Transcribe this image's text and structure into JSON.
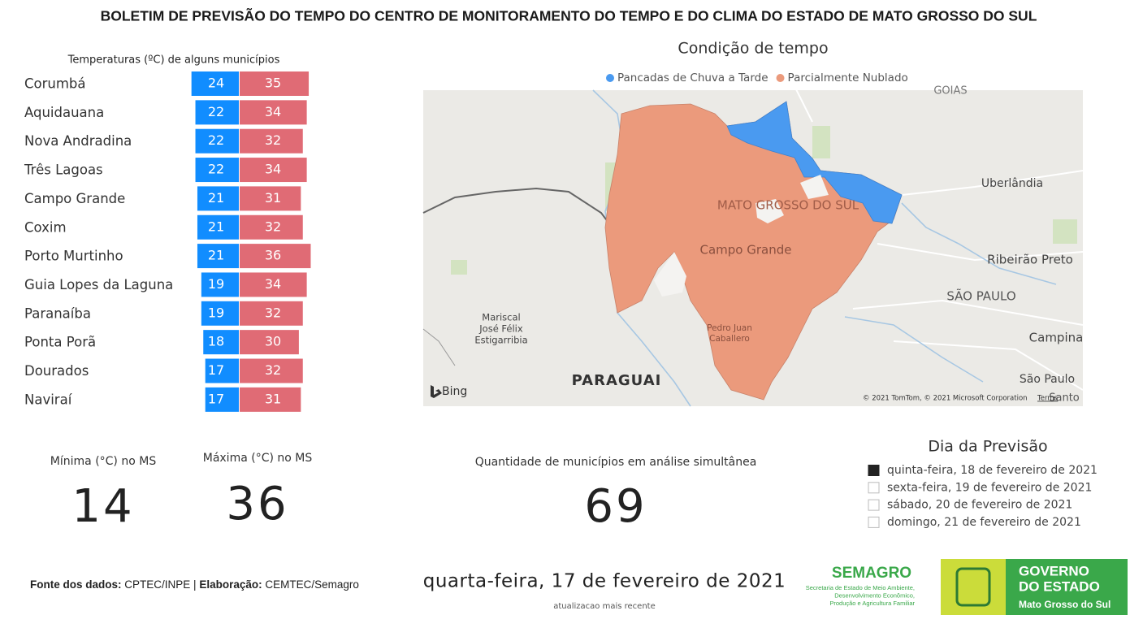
{
  "header": {
    "title": "BOLETIM DE PREVISÃO DO TEMPO DO CENTRO DE MONITORAMENTO DO TEMPO E DO CLIMA DO ESTADO DE MATO GROSSO DO SUL"
  },
  "chart_data": {
    "type": "bar",
    "title": "Temperaturas (ºC) de alguns municípios",
    "categories": [
      "Corumbá",
      "Aquidauana",
      "Nova Andradina",
      "Três Lagoas",
      "Campo Grande",
      "Coxim",
      "Porto Murtinho",
      "Guia Lopes da Laguna",
      "Paranaíba",
      "Ponta Porã",
      "Dourados",
      "Naviraí"
    ],
    "series": [
      {
        "color": "#118dff",
        "values": [
          24,
          22,
          22,
          22,
          21,
          21,
          21,
          19,
          19,
          18,
          17,
          17
        ]
      },
      {
        "color": "#e06b75",
        "values": [
          35,
          34,
          32,
          34,
          31,
          32,
          36,
          34,
          32,
          30,
          32,
          31
        ]
      }
    ]
  },
  "map": {
    "title": "Condição de tempo",
    "legend": [
      {
        "name": "Pancadas de Chuva a Tarde",
        "color": "#4a9af0"
      },
      {
        "name": "Parcialmente Nublado",
        "color": "#eb9a7c"
      }
    ],
    "labels": [
      "GOIAS",
      "Uberlândia",
      "MATO GROSSO DO SUL",
      "Campo Grande",
      "Ribeirão Preto",
      "SÃO PAULO",
      "Mariscal",
      "José Félix",
      "Estigarribia",
      "Pedro Juan",
      "Caballero",
      "PARAGUAI",
      "Campina",
      "São Paulo",
      "Santo"
    ],
    "brand": "Bing",
    "copyright": "© 2021 TomTom, © 2021 Microsoft Corporation",
    "terms": "Terms"
  },
  "kpis": [
    {
      "label": "Mínima (°C) no MS",
      "value": 14
    },
    {
      "label": "Máxima (°C) no MS",
      "value": 36
    },
    {
      "label": "Quantidade de municípios em análise simultânea",
      "value": 69
    }
  ],
  "slicer": {
    "title": "Dia da Previsão",
    "items": [
      {
        "label": "quinta-feira, 18 de fevereiro de 2021",
        "selected": true
      },
      {
        "label": "sexta-feira, 19 de fevereiro de 2021",
        "selected": false
      },
      {
        "label": "sábado, 20 de fevereiro de 2021",
        "selected": false
      },
      {
        "label": "domingo, 21 de fevereiro de 2021",
        "selected": false
      }
    ]
  },
  "footer": {
    "source_label": "Fonte dos dados:",
    "source": "CPTEC/INPE |",
    "made_label": "Elaboração:",
    "made": "CEMTEC/Semagro",
    "date": "quarta-feira, 17 de fevereiro de 2021",
    "date_caption": "atualizacao mais recente",
    "semagro": "SEMAGRO",
    "semagro_sub": [
      "Secretaria de Estado de Meio Ambiente,",
      "Desenvolvimento Econômico,",
      "Produção e Agricultura Familiar"
    ],
    "gov": [
      "GOVERNO",
      "DO ESTADO"
    ],
    "gov_sub": "Mato Grosso do Sul"
  }
}
